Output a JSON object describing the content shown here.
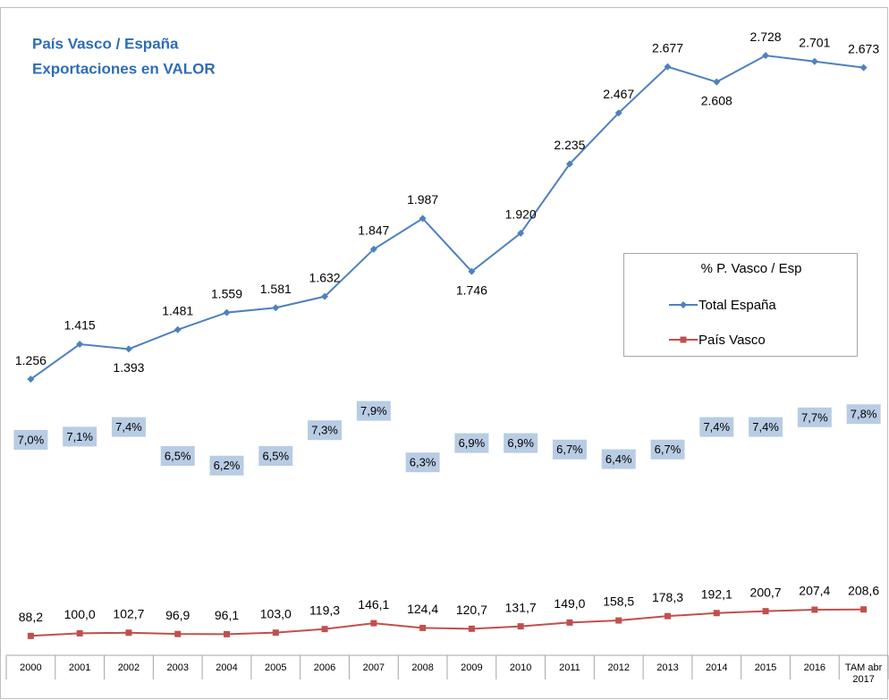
{
  "chart_data": {
    "type": "line",
    "title": "País Vasco / España",
    "subtitle": "Exportaciones en VALOR",
    "legend_title": "% P. Vasco / Esp",
    "legend": "right",
    "categories": [
      "2000",
      "2001",
      "2002",
      "2003",
      "2004",
      "2005",
      "2006",
      "2007",
      "2008",
      "2009",
      "2010",
      "2011",
      "2012",
      "2013",
      "2014",
      "2015",
      "2016",
      "TAM abr 2017"
    ],
    "ylim": [
      0,
      2940
    ],
    "y2lim": [
      0.3,
      20.4
    ],
    "series": [
      {
        "name": "Total España",
        "color": "#4f81bd",
        "marker": "diamond",
        "values": [
          1256,
          1415,
          1393,
          1481,
          1559,
          1581,
          1632,
          1847,
          1987,
          1746,
          1920,
          2235,
          2467,
          2677,
          2608,
          2728,
          2701,
          2673
        ],
        "value_labels": [
          "1.256",
          "1.415",
          "1.393",
          "1.481",
          "1.559",
          "1.581",
          "1.632",
          "1.847",
          "1.987",
          "1.746",
          "1.920",
          "2.235",
          "2.467",
          "2.677",
          "2.608",
          "2.728",
          "2.701",
          "2.673"
        ]
      },
      {
        "name": "País Vasco",
        "color": "#c0504d",
        "marker": "square",
        "values": [
          88.2,
          100.0,
          102.7,
          96.9,
          96.1,
          103.0,
          119.3,
          146.1,
          124.4,
          120.7,
          131.7,
          149.0,
          158.5,
          178.3,
          192.1,
          200.7,
          207.4,
          208.6
        ],
        "value_labels": [
          "88,2",
          "100,0",
          "102,7",
          "96,9",
          "96,1",
          "103,0",
          "119,3",
          "146,1",
          "124,4",
          "120,7",
          "131,7",
          "149,0",
          "158,5",
          "178,3",
          "192,1",
          "200,7",
          "207,4",
          "208,6"
        ]
      },
      {
        "axis": "y2",
        "color": "#b8cce4",
        "values": [
          7.0,
          7.1,
          7.4,
          6.5,
          6.2,
          6.5,
          7.3,
          7.9,
          6.3,
          6.9,
          6.9,
          6.7,
          6.4,
          6.7,
          7.4,
          7.4,
          7.7,
          7.8
        ],
        "value_labels": [
          "7,0%",
          "7,1%",
          "7,4%",
          "6,5%",
          "6,2%",
          "6,5%",
          "7,3%",
          "7,9%",
          "6,3%",
          "6,9%",
          "6,9%",
          "6,7%",
          "6,4%",
          "6,7%",
          "7,4%",
          "7,4%",
          "7,7%",
          "7,8%"
        ]
      }
    ]
  }
}
